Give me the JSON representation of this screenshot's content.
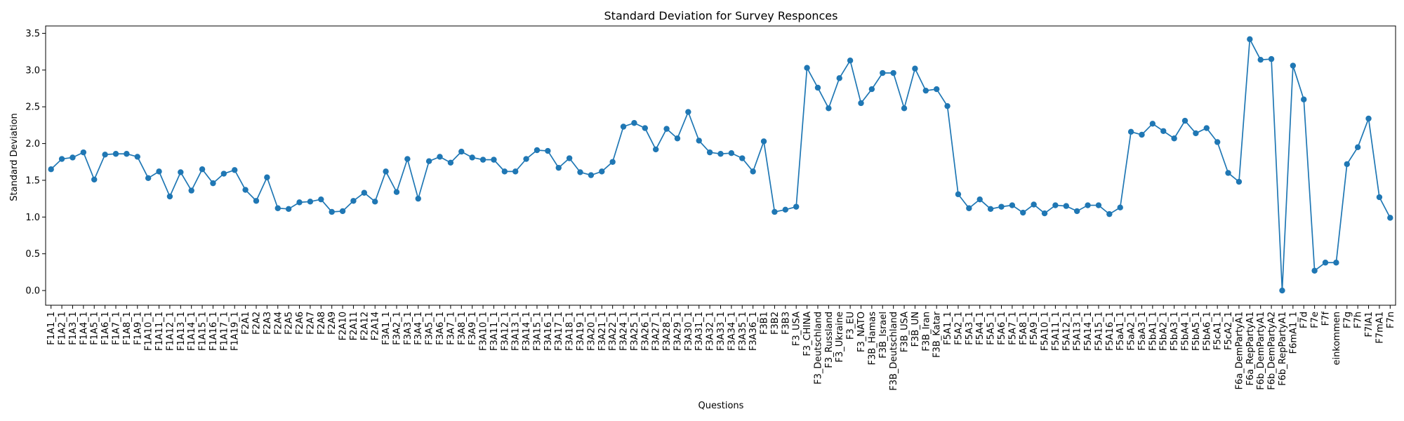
{
  "chart_data": {
    "type": "line",
    "title": "Standard Deviation for Survey Responces",
    "xlabel": "Questions",
    "ylabel": "Standard Deviation",
    "ylim": [
      -0.2,
      3.6
    ],
    "yticks": [
      0.0,
      0.5,
      1.0,
      1.5,
      2.0,
      2.5,
      3.0,
      3.5
    ],
    "ytick_labels": [
      "0.0",
      "0.5",
      "1.0",
      "1.5",
      "2.0",
      "2.5",
      "3.0",
      "3.5"
    ],
    "grid": false,
    "marker": "circle",
    "series_color": "#1f77b4",
    "categories": [
      "F1A1_1",
      "F1A2_1",
      "F1A3_1",
      "F1A4_1",
      "F1A5_1",
      "F1A6_1",
      "F1A7_1",
      "F1A8_1",
      "F1A9_1",
      "F1A10_1",
      "F1A11_1",
      "F1A12_1",
      "F1A13_1",
      "F1A14_1",
      "F1A15_1",
      "F1A16_1",
      "F1A17_1",
      "F1A19_1",
      "F2A1",
      "F2A2",
      "F2A3",
      "F2A4",
      "F2A5",
      "F2A6",
      "F2A7",
      "F2A8",
      "F2A9",
      "F2A10",
      "F2A11",
      "F2A12",
      "F2A14",
      "F3A1_1",
      "F3A2_1",
      "F3A3_1",
      "F3A4_1",
      "F3A5_1",
      "F3A6_1",
      "F3A7_1",
      "F3A8_1",
      "F3A9_1",
      "F3A10_1",
      "F3A11_1",
      "F3A12_1",
      "F3A13_1",
      "F3A14_1",
      "F3A15_1",
      "F3A16_1",
      "F3A17_1",
      "F3A18_1",
      "F3A19_1",
      "F3A20_1",
      "F3A21_1",
      "F3A22_1",
      "F3A24_1",
      "F3A25_1",
      "F3A26_1",
      "F3A27_1",
      "F3A28_1",
      "F3A29_1",
      "F3A30_1",
      "F3A31_1",
      "F3A32_1",
      "F3A33_1",
      "F3A34_1",
      "F3A35_1",
      "F3A36_1",
      "F3B1",
      "F3B2",
      "F3B3",
      "F3_USA",
      "F3_CHINA",
      "F3_Deutschland",
      "F3_Russland",
      "F3_Ukraine",
      "F3_EU",
      "F3_NATO",
      "F3B_Hamas",
      "F3B_Israel",
      "F3B_Deutschland",
      "F3B_USA",
      "F3B_UN",
      "F3B_Iran",
      "F3B_Katar",
      "F5A1_1",
      "F5A2_1",
      "F5A3_1",
      "F5A4_1",
      "F5A5_1",
      "F5A6_1",
      "F5A7_1",
      "F5A8_1",
      "F5A9_1",
      "F5A10_1",
      "F5A11_1",
      "F5A12_1",
      "F5A13_1",
      "F5A14_1",
      "F5A15_1",
      "F5A16_1",
      "F5aA1_1",
      "F5aA2_1",
      "F5aA3_1",
      "F5bA1_1",
      "F5bA2_1",
      "F5bA3_1",
      "F5bA4_1",
      "F5bA5_1",
      "F5bA6_1",
      "F5cA1_1",
      "F5cA2_1",
      "F6a_DemPartyA1",
      "F6a_RepPartyA1",
      "F6b_DemPartyA1",
      "F6b_DemPartyA2",
      "F6b_RepPartyA1",
      "F6mA1_1",
      "F7d",
      "F7e",
      "F7f",
      "einkommen",
      "F7g",
      "F7h",
      "F7lA1",
      "F7mA1",
      "F7n"
    ],
    "values": [
      1.65,
      1.79,
      1.81,
      1.88,
      1.51,
      1.85,
      1.86,
      1.86,
      1.82,
      1.53,
      1.62,
      1.28,
      1.61,
      1.36,
      1.65,
      1.46,
      1.59,
      1.64,
      1.37,
      1.22,
      1.54,
      1.12,
      1.11,
      1.2,
      1.21,
      1.24,
      1.07,
      1.08,
      1.22,
      1.33,
      1.21,
      1.62,
      1.34,
      1.79,
      1.25,
      1.76,
      1.82,
      1.74,
      1.89,
      1.81,
      1.78,
      1.78,
      1.62,
      1.62,
      1.79,
      1.91,
      1.9,
      1.67,
      1.8,
      1.61,
      1.57,
      1.62,
      1.75,
      2.23,
      2.28,
      2.21,
      1.92,
      2.2,
      2.07,
      2.43,
      2.04,
      1.88,
      1.86,
      1.87,
      1.8,
      1.62,
      2.03,
      1.07,
      1.1,
      1.14,
      3.03,
      2.76,
      2.48,
      2.89,
      3.13,
      2.55,
      2.74,
      2.96,
      2.96,
      2.48,
      3.02,
      2.72,
      2.74,
      2.51,
      1.31,
      1.12,
      1.24,
      1.11,
      1.14,
      1.16,
      1.06,
      1.17,
      1.05,
      1.16,
      1.15,
      1.08,
      1.16,
      1.16,
      1.04,
      1.13,
      2.16,
      2.12,
      2.27,
      2.17,
      2.07,
      2.31,
      2.14,
      2.21,
      2.02,
      1.6,
      1.48,
      3.42,
      3.14,
      3.15,
      0.0,
      3.06,
      2.6,
      0.27,
      0.38,
      0.38,
      1.72,
      1.95,
      2.34,
      1.27,
      0.99
    ]
  }
}
